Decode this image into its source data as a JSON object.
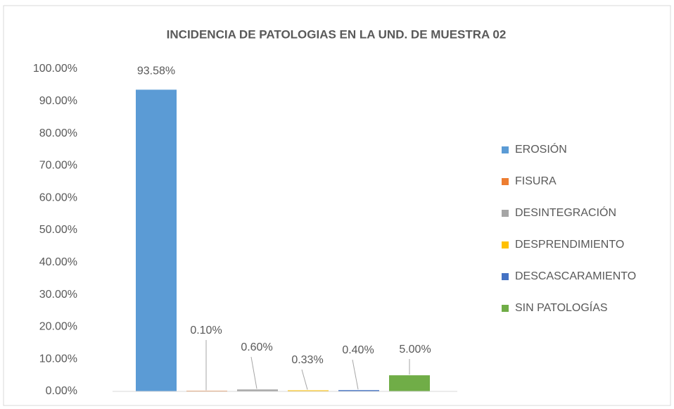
{
  "chart_data": {
    "type": "bar",
    "title": "INCIDENCIA DE PATOLOGIAS EN LA UND. DE MUESTRA 02",
    "categories": [
      null
    ],
    "series": [
      {
        "name": "EROSIÓN",
        "color": "#5b9bd5",
        "values": [
          93.58
        ],
        "value_labels": [
          "93.58%"
        ]
      },
      {
        "name": "FISURA",
        "color": "#ed7d31",
        "values": [
          0.1
        ],
        "value_labels": [
          "0.10%"
        ]
      },
      {
        "name": "DESINTEGRACIÓN",
        "color": "#a5a5a5",
        "values": [
          0.6
        ],
        "value_labels": [
          "0.60%"
        ]
      },
      {
        "name": "DESPRENDIMIENTO",
        "color": "#ffc000",
        "values": [
          0.33
        ],
        "value_labels": [
          "0.33%"
        ]
      },
      {
        "name": "DESCASCARAMIENTO",
        "color": "#4472c4",
        "values": [
          0.4
        ],
        "value_labels": [
          "0.40%"
        ]
      },
      {
        "name": "SIN PATOLOGÍAS",
        "color": "#70ad47",
        "values": [
          5.0
        ],
        "value_labels": [
          "5.00%"
        ]
      }
    ],
    "ylim": [
      0,
      100
    ],
    "yticks": [
      {
        "value": 0,
        "label": "0.00%"
      },
      {
        "value": 10,
        "label": "10.00%"
      },
      {
        "value": 20,
        "label": "20.00%"
      },
      {
        "value": 30,
        "label": "30.00%"
      },
      {
        "value": 40,
        "label": "40.00%"
      },
      {
        "value": 50,
        "label": "50.00%"
      },
      {
        "value": 60,
        "label": "60.00%"
      },
      {
        "value": 70,
        "label": "70.00%"
      },
      {
        "value": 80,
        "label": "80.00%"
      },
      {
        "value": 90,
        "label": "90.00%"
      },
      {
        "value": 100,
        "label": "100.00%"
      }
    ],
    "grid": false,
    "legend": "right"
  }
}
